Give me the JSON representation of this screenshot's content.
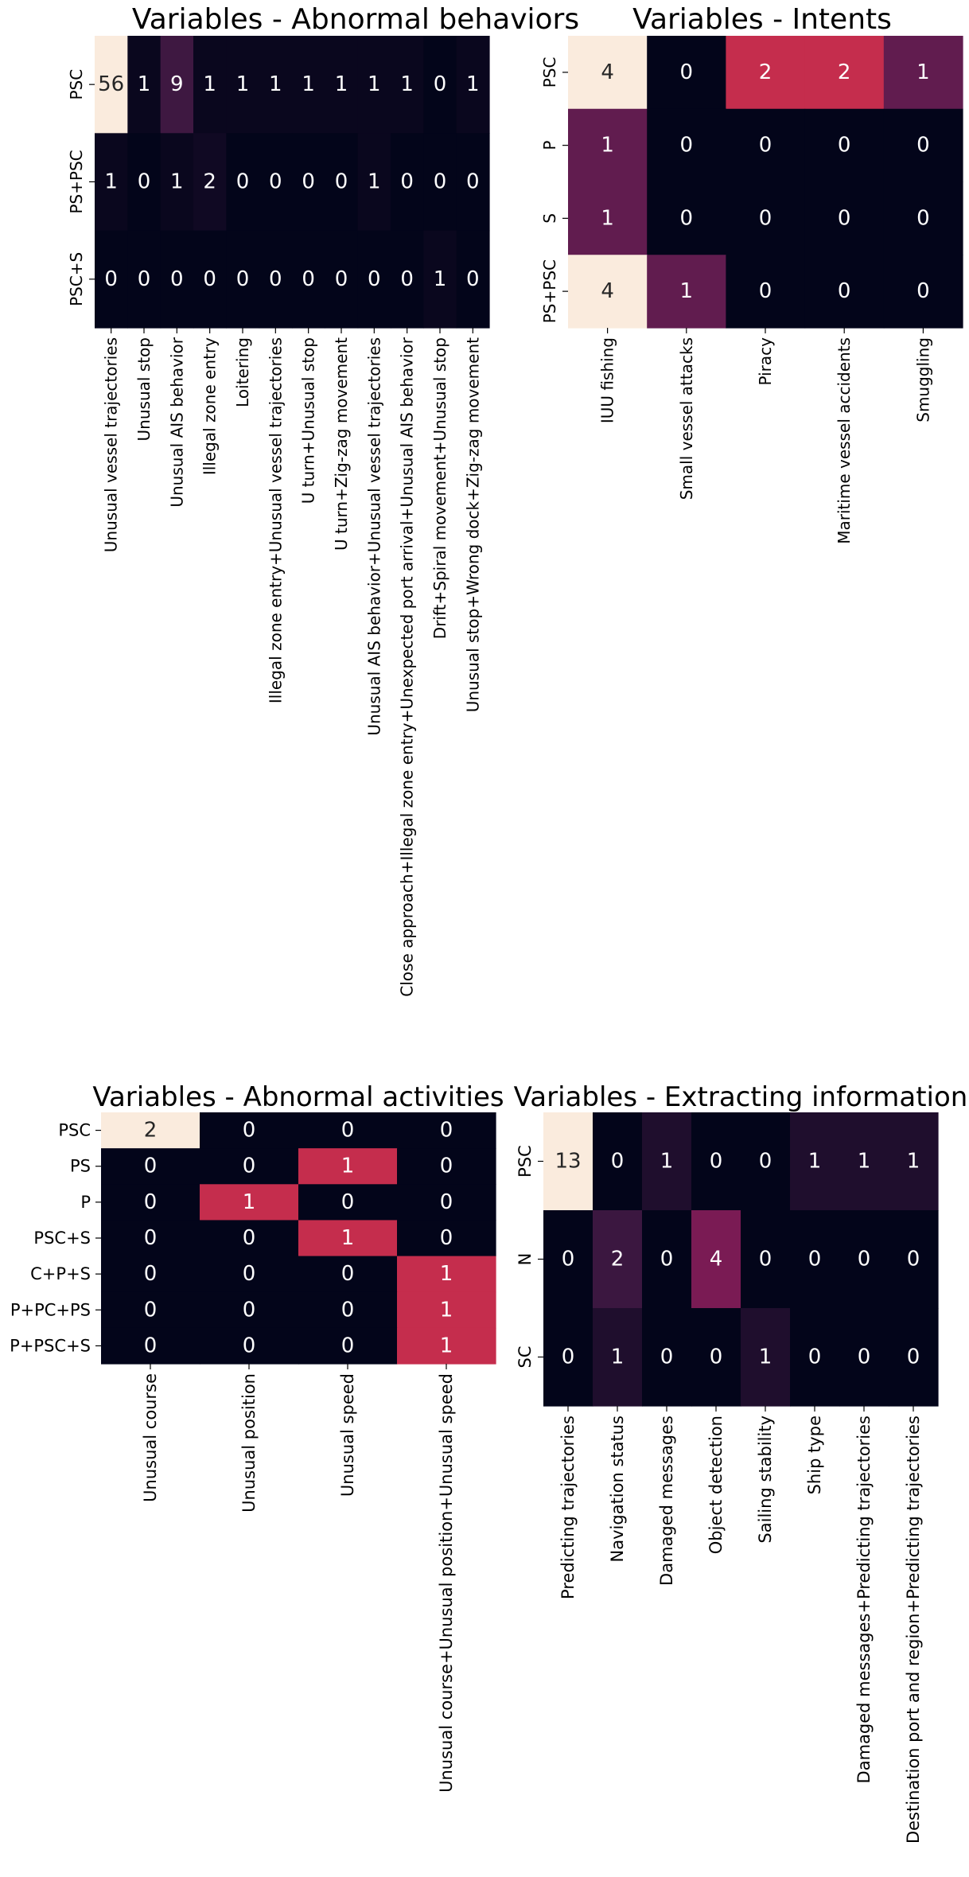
{
  "colors": {
    "cmap_stops": [
      "#03051a",
      "#4c1d4b",
      "#a11a5b",
      "#e83f3f",
      "#f69c73",
      "#faebdd"
    ],
    "dark_annotation": "#262626",
    "light_annotation": "#ffffff",
    "tick_text": "#000000"
  },
  "chart_data": [
    {
      "type": "heatmap",
      "title": "Variables - Abnormal behaviors",
      "colorscale": "rocket",
      "vmin": 0,
      "vmax": 56,
      "rows": [
        "PSC",
        "PS+PSC",
        "PSC+S"
      ],
      "ylabels_rotated": true,
      "columns": [
        "Unusual vessel trajectories",
        "Unusual stop",
        "Unusual AIS behavior",
        "Illegal zone entry",
        "Loitering",
        "Illegal zone entry+Unusual vessel trajectories",
        "U turn+Unusual stop",
        "U turn+Zig-zag movement",
        "Unusual AIS behavior+Unusual vessel trajectories",
        "Close approach+Illegal zone entry+Unexpected port arrival+Unusual AIS behavior",
        "Drift+Spiral movement+Unusual stop",
        "Unusual stop+Wrong dock+Zig-zag movement"
      ],
      "values": [
        [
          56,
          1,
          9,
          1,
          1,
          1,
          1,
          1,
          1,
          1,
          0,
          1
        ],
        [
          1,
          0,
          1,
          2,
          0,
          0,
          0,
          0,
          1,
          0,
          0,
          0
        ],
        [
          0,
          0,
          0,
          0,
          0,
          0,
          0,
          0,
          0,
          0,
          1,
          0
        ]
      ]
    },
    {
      "type": "heatmap",
      "title": "Variables - Intents",
      "colorscale": "rocket",
      "vmin": 0,
      "vmax": 4,
      "rows": [
        "PSC",
        "P",
        "S",
        "PS+PSC"
      ],
      "ylabels_rotated": true,
      "columns": [
        "IUU fishing",
        "Small vessel attacks",
        "Piracy",
        "Maritime vessel accidents",
        "Smuggling"
      ],
      "values": [
        [
          4,
          0,
          2,
          2,
          1
        ],
        [
          1,
          0,
          0,
          0,
          0
        ],
        [
          1,
          0,
          0,
          0,
          0
        ],
        [
          4,
          1,
          0,
          0,
          0
        ]
      ]
    },
    {
      "type": "heatmap",
      "title": "Variables - Abnormal activities",
      "colorscale": "rocket",
      "vmin": 0,
      "vmax": 2,
      "rows": [
        "PSC",
        "PS",
        "P",
        "PSC+S",
        "C+P+S",
        "P+PC+PS",
        "P+PSC+S"
      ],
      "ylabels_rotated": false,
      "columns": [
        "Unusual course",
        "Unusual position",
        "Unusual speed",
        "Unusual course+Unusual position+Unusual speed"
      ],
      "values": [
        [
          2,
          0,
          0,
          0
        ],
        [
          0,
          0,
          1,
          0
        ],
        [
          0,
          1,
          0,
          0
        ],
        [
          0,
          0,
          1,
          0
        ],
        [
          0,
          0,
          0,
          1
        ],
        [
          0,
          0,
          0,
          1
        ],
        [
          0,
          0,
          0,
          1
        ]
      ]
    },
    {
      "type": "heatmap",
      "title": "Variables - Extracting information",
      "colorscale": "rocket",
      "vmin": 0,
      "vmax": 13,
      "rows": [
        "PSC",
        "N",
        "SC"
      ],
      "ylabels_rotated": true,
      "columns": [
        "Predicting trajectories",
        "Navigation status",
        "Damaged messages",
        "Object detection",
        "Sailing stability",
        "Ship type",
        "Damaged messages+Predicting trajectories",
        "Destination port and region+Predicting trajectories"
      ],
      "values": [
        [
          13,
          0,
          1,
          0,
          0,
          1,
          1,
          1
        ],
        [
          0,
          2,
          0,
          4,
          0,
          0,
          0,
          0
        ],
        [
          0,
          1,
          0,
          0,
          1,
          0,
          0,
          0
        ]
      ]
    }
  ]
}
